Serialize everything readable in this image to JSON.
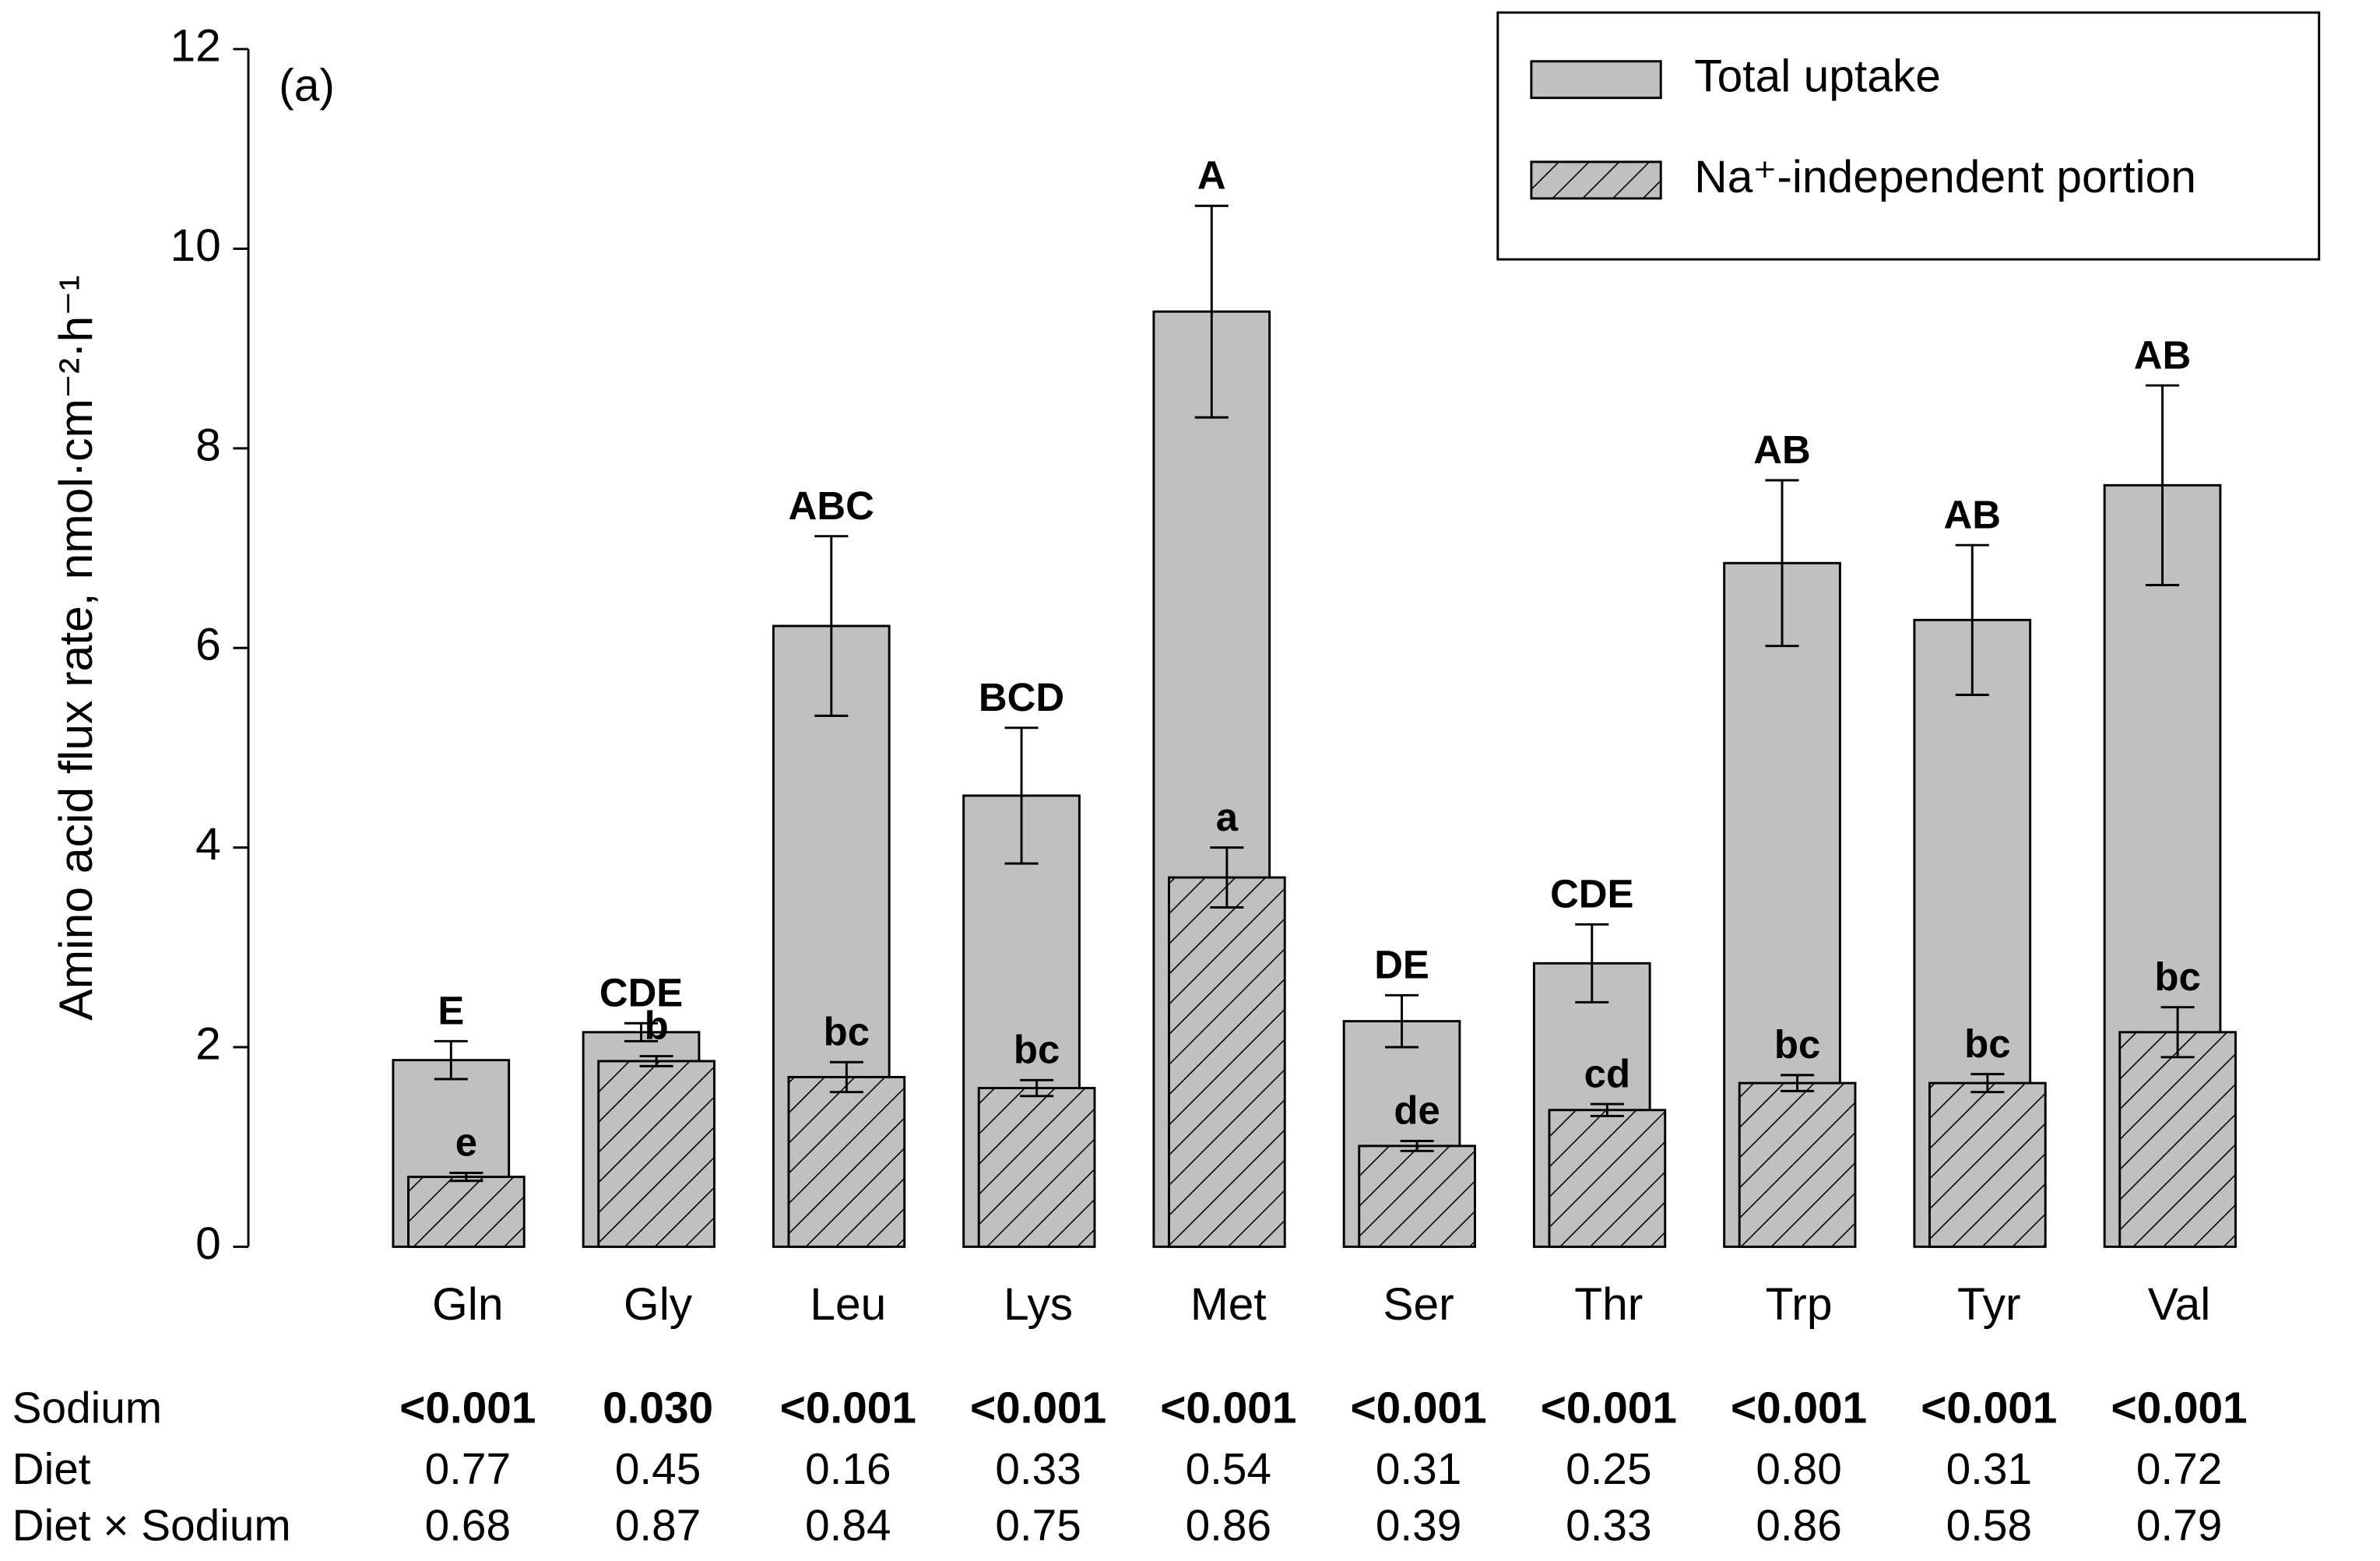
{
  "chart_data": {
    "type": "bar",
    "annotation": "(a)",
    "y_label": "Amino acid flux rate, nmol·cm⁻²·h⁻¹",
    "categories": [
      "Gln",
      "Gly",
      "Leu",
      "Lys",
      "Met",
      "Ser",
      "Thr",
      "Trp",
      "Tyr",
      "Val"
    ],
    "series": [
      {
        "name": "Total uptake",
        "color": "#c0c0c0",
        "pattern": "solid",
        "values": [
          1.87,
          2.15,
          6.22,
          4.52,
          9.37,
          2.26,
          2.84,
          6.85,
          6.28,
          7.63
        ],
        "errors": [
          0.19,
          0.09,
          0.9,
          0.68,
          1.06,
          0.26,
          0.39,
          0.83,
          0.75,
          1.0
        ],
        "letters": [
          "E",
          "CDE",
          "ABC",
          "BCD",
          "A",
          "DE",
          "CDE",
          "AB",
          "AB",
          "AB"
        ]
      },
      {
        "name": "Na⁺-independent portion",
        "color": "#c0c0c0",
        "pattern": "hatch",
        "values": [
          0.7,
          1.86,
          1.7,
          1.59,
          3.7,
          1.01,
          1.37,
          1.64,
          1.64,
          2.15
        ],
        "errors": [
          0.04,
          0.05,
          0.15,
          0.08,
          0.3,
          0.05,
          0.06,
          0.08,
          0.09,
          0.25
        ],
        "letters": [
          "e",
          "b",
          "bc",
          "bc",
          "a",
          "de",
          "cd",
          "bc",
          "bc",
          "bc"
        ]
      }
    ],
    "ylim": [
      0,
      12
    ],
    "yticks": [
      0,
      2,
      4,
      6,
      8,
      10,
      12
    ],
    "legend": "upper right",
    "stats_table": [
      {
        "label": "Sodium",
        "bold": true,
        "values": [
          "<0.001",
          "0.030",
          "<0.001",
          "<0.001",
          "<0.001",
          "<0.001",
          "<0.001",
          "<0.001",
          "<0.001",
          "<0.001"
        ]
      },
      {
        "label": "Diet",
        "bold": false,
        "values": [
          "0.77",
          "0.45",
          "0.16",
          "0.33",
          "0.54",
          "0.31",
          "0.25",
          "0.80",
          "0.31",
          "0.72"
        ]
      },
      {
        "label": "Diet × Sodium",
        "bold": false,
        "values": [
          "0.68",
          "0.87",
          "0.84",
          "0.75",
          "0.86",
          "0.39",
          "0.33",
          "0.86",
          "0.58",
          "0.79"
        ]
      }
    ]
  }
}
